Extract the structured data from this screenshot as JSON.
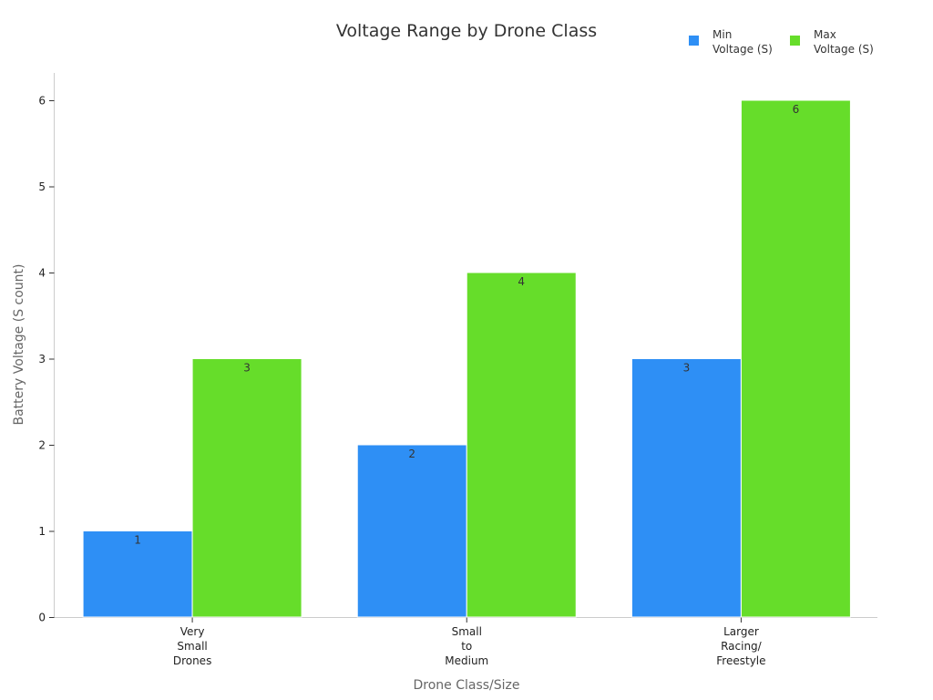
{
  "chart_data": {
    "type": "bar",
    "title": "Voltage Range by Drone Class",
    "xlabel": "Drone Class/Size",
    "ylabel": "Battery Voltage (S count)",
    "categories": [
      [
        "Very",
        "Small",
        "Drones"
      ],
      [
        "Small",
        "to",
        "Medium"
      ],
      [
        "Larger",
        "Racing/",
        "Freestyle"
      ]
    ],
    "series": [
      {
        "name": [
          "Min",
          "Voltage (S)"
        ],
        "color": "#2e8ff5",
        "values": [
          1,
          2,
          3
        ]
      },
      {
        "name": [
          "Max",
          "Voltage (S)"
        ],
        "color": "#66dd2a",
        "values": [
          3,
          4,
          6
        ]
      }
    ],
    "ylim": [
      0,
      6.3
    ],
    "yticks": [
      0,
      1,
      2,
      3,
      4,
      5,
      6
    ],
    "grid": false,
    "legend": "top-right",
    "data_labels": true
  }
}
